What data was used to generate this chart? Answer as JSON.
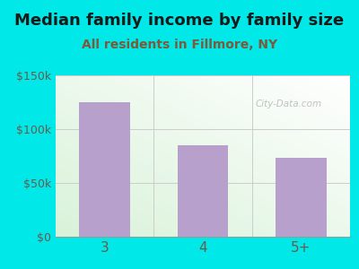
{
  "title": "Median family income by family size",
  "subtitle": "All residents in Fillmore, NY",
  "categories": [
    "3",
    "4",
    "5+"
  ],
  "values": [
    125000,
    85000,
    73000
  ],
  "bar_color": "#b8a0cc",
  "bg_color": "#00e8e8",
  "plot_bg_color": "#e8f5e0",
  "title_color": "#1a1a1a",
  "subtitle_color": "#7a5a3a",
  "axis_label_color": "#6a5a4a",
  "ylim": [
    0,
    150000
  ],
  "yticks": [
    0,
    50000,
    100000,
    150000
  ],
  "ytick_labels": [
    "$0",
    "$50k",
    "$100k",
    "$150k"
  ],
  "watermark": "City-Data.com",
  "title_fontsize": 13,
  "subtitle_fontsize": 10
}
